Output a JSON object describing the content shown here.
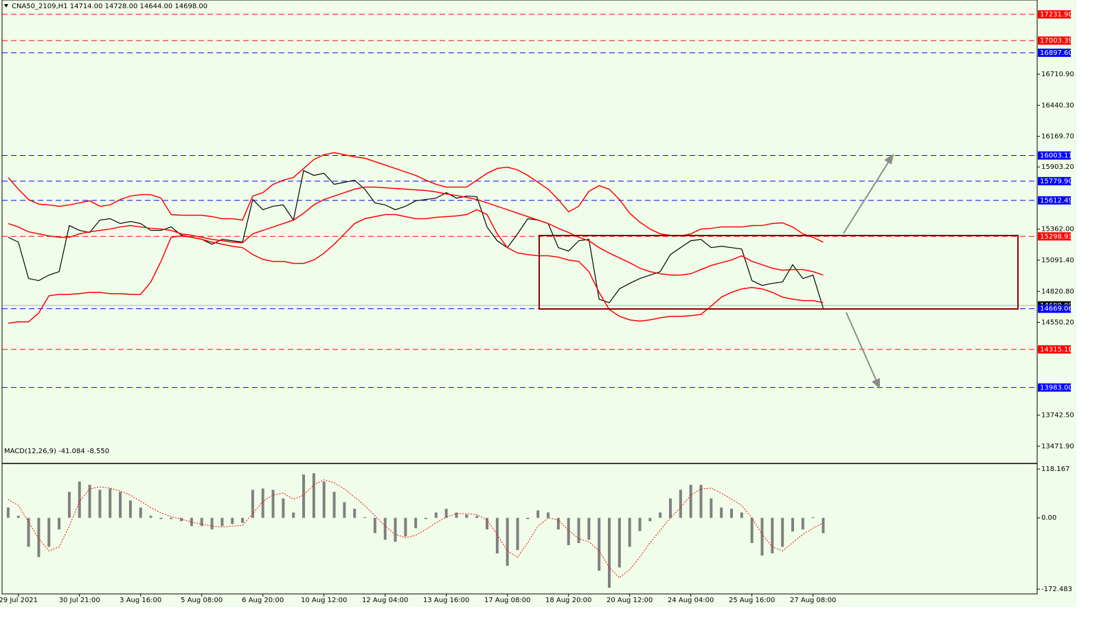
{
  "chart_data": [
    {
      "type": "line",
      "title": "CNA50_2109,H1  14714.00 14728.00 14644.00 14698.00",
      "x": [
        -1,
        0,
        1,
        2,
        3,
        4,
        5,
        6,
        7,
        8,
        9,
        10,
        11,
        12,
        13,
        14,
        15,
        16,
        17,
        18,
        19,
        20,
        21,
        22,
        23,
        24,
        25,
        26,
        27,
        28,
        29,
        30,
        31,
        32,
        33,
        34,
        35,
        36,
        37,
        38,
        39,
        40,
        41,
        42,
        43,
        44,
        45,
        46,
        47,
        48,
        49,
        50,
        51,
        52,
        53,
        54,
        55,
        56,
        57,
        58,
        59,
        60,
        61,
        62,
        63,
        64,
        65,
        66,
        67,
        68,
        69,
        70,
        71,
        72,
        73,
        74,
        75,
        76,
        77,
        78,
        79
      ],
      "xlim": [
        -1.6,
        100
      ],
      "xticks": [
        {
          "value": 0,
          "label": "29 Jul 2021"
        },
        {
          "value": 6,
          "label": "30 Jul 21:00"
        },
        {
          "value": 12,
          "label": "3 Aug 16:00"
        },
        {
          "value": 18,
          "label": "5 Aug 08:00"
        },
        {
          "value": 24,
          "label": "6 Aug 20:00"
        },
        {
          "value": 30,
          "label": "10 Aug 12:00"
        },
        {
          "value": 36,
          "label": "12 Aug 04:00"
        },
        {
          "value": 42,
          "label": "13 Aug 16:00"
        },
        {
          "value": 48,
          "label": "17 Aug 08:00"
        },
        {
          "value": 54,
          "label": "18 Aug 20:00"
        },
        {
          "value": 60,
          "label": "20 Aug 12:00"
        },
        {
          "value": 66,
          "label": "24 Aug 04:00"
        },
        {
          "value": 72,
          "label": "25 Aug 16:00"
        },
        {
          "value": 78,
          "label": "27 Aug 08:00"
        }
      ],
      "ylim": [
        13322,
        17357
      ],
      "yticks": [
        {
          "value": 16710.9,
          "label": "16710.90"
        },
        {
          "value": 16440.3,
          "label": "16440.30"
        },
        {
          "value": 16169.7,
          "label": "16169.70"
        },
        {
          "value": 15903.2,
          "label": "15903.20"
        },
        {
          "value": 15362,
          "label": "15362.00"
        },
        {
          "value": 15091.4,
          "label": "15091.40"
        },
        {
          "value": 14820.8,
          "label": "14820.80"
        },
        {
          "value": 14550.2,
          "label": "14550.20"
        },
        {
          "value": 13742.5,
          "label": "13742.50"
        },
        {
          "value": 13471.9,
          "label": "13471.90"
        }
      ],
      "grid": false,
      "series": [
        {
          "color": "#000000",
          "width": 1.2,
          "values": [
            15291,
            15249,
            14932,
            14914,
            14962,
            14992,
            15393,
            15351,
            15333,
            15441,
            15453,
            15411,
            15429,
            15411,
            15351,
            15351,
            15381,
            15309,
            15291,
            15273,
            15231,
            15273,
            15261,
            15249,
            15620,
            15531,
            15561,
            15573,
            15441,
            15872,
            15830,
            15848,
            15752,
            15770,
            15788,
            15710,
            15591,
            15573,
            15531,
            15561,
            15609,
            15620,
            15632,
            15680,
            15632,
            15650,
            15644,
            15381,
            15261,
            15201,
            15321,
            15453,
            15441,
            15411,
            15201,
            15171,
            15261,
            15273,
            14752,
            14722,
            14842,
            14890,
            14932,
            14962,
            14992,
            15141,
            15201,
            15261,
            15273,
            15201,
            15213,
            15201,
            15189,
            14914,
            14872,
            14890,
            14902,
            15052,
            14932,
            14962,
            14674
          ]
        },
        {
          "color": "#ff0000",
          "width": 1.5,
          "values": [
            15812,
            15710,
            15620,
            15579,
            15573,
            15561,
            15573,
            15591,
            15609,
            15561,
            15573,
            15620,
            15650,
            15662,
            15662,
            15632,
            15489,
            15483,
            15483,
            15483,
            15471,
            15453,
            15453,
            15441,
            15650,
            15680,
            15752,
            15788,
            15812,
            15890,
            15968,
            16010,
            16028,
            16010,
            15992,
            15980,
            15950,
            15920,
            15890,
            15860,
            15830,
            15788,
            15752,
            15728,
            15728,
            15728,
            15788,
            15848,
            15890,
            15902,
            15878,
            15830,
            15770,
            15710,
            15620,
            15513,
            15561,
            15692,
            15740,
            15710,
            15620,
            15501,
            15423,
            15363,
            15321,
            15309,
            15303,
            15321,
            15363,
            15369,
            15381,
            15381,
            15381,
            15393,
            15393,
            15411,
            15417,
            15381,
            15321,
            15291,
            15249
          ]
        },
        {
          "color": "#ff0000",
          "width": 1.5,
          "values": [
            15411,
            15381,
            15339,
            15321,
            15303,
            15291,
            15291,
            15321,
            15339,
            15351,
            15363,
            15381,
            15393,
            15381,
            15369,
            15363,
            15351,
            15321,
            15309,
            15291,
            15273,
            15261,
            15249,
            15243,
            15321,
            15351,
            15381,
            15411,
            15441,
            15501,
            15573,
            15620,
            15650,
            15680,
            15710,
            15728,
            15728,
            15722,
            15716,
            15710,
            15704,
            15698,
            15686,
            15668,
            15656,
            15638,
            15620,
            15591,
            15561,
            15531,
            15501,
            15471,
            15441,
            15411,
            15369,
            15333,
            15291,
            15261,
            15201,
            15154,
            15111,
            15070,
            15022,
            14992,
            14974,
            14962,
            14962,
            14974,
            15010,
            15046,
            15070,
            15094,
            15130,
            15082,
            15052,
            15022,
            15004,
            15010,
            15010,
            14992,
            14962
          ]
        },
        {
          "color": "#ff0000",
          "width": 1.5,
          "values": [
            14543,
            14555,
            14555,
            14632,
            14782,
            14794,
            14794,
            14800,
            14812,
            14812,
            14800,
            14800,
            14794,
            14794,
            14902,
            15082,
            15291,
            15303,
            15291,
            15273,
            15249,
            15231,
            15213,
            15201,
            15141,
            15099,
            15081,
            15081,
            15064,
            15064,
            15093,
            15153,
            15231,
            15321,
            15411,
            15453,
            15471,
            15489,
            15489,
            15471,
            15453,
            15453,
            15465,
            15471,
            15477,
            15489,
            15531,
            15489,
            15321,
            15201,
            15154,
            15141,
            15130,
            15130,
            15118,
            15093,
            15081,
            14992,
            14812,
            14662,
            14603,
            14572,
            14561,
            14572,
            14590,
            14603,
            14603,
            14608,
            14620,
            14692,
            14770,
            14812,
            14842,
            14854,
            14842,
            14812,
            14770,
            14752,
            14740,
            14740,
            14722
          ]
        }
      ],
      "levels": [
        {
          "value": 17231.9,
          "label": "17231.90",
          "color": "#ff0000"
        },
        {
          "value": 17003.39,
          "label": "17003.39",
          "color": "#ff0000"
        },
        {
          "value": 16897.6,
          "label": "16897.60",
          "color": "#0000ff"
        },
        {
          "value": 16003.11,
          "label": "16003.11",
          "color": "#0000ff"
        },
        {
          "value": 15779.9,
          "label": "15779.90",
          "color": "#0000ff"
        },
        {
          "value": 15612.49,
          "label": "15612.49",
          "color": "#0000ff"
        },
        {
          "value": 15298.93,
          "label": "15298.93",
          "color": "#ff0000"
        },
        {
          "value": 14669.06,
          "label": "14669.06",
          "color": "#0000ff"
        },
        {
          "value": 14315.18,
          "label": "14315.18",
          "color": "#ff0000"
        },
        {
          "value": 13983,
          "label": "13983.00",
          "color": "#0000ff"
        }
      ],
      "current_price": {
        "value": 14698,
        "label": "14698.00"
      }
    },
    {
      "type": "bar",
      "title": "MACD(12,26,9) -41.084 -8.550",
      "x": [
        -1,
        0,
        1,
        2,
        3,
        4,
        5,
        6,
        7,
        8,
        9,
        10,
        11,
        12,
        13,
        14,
        15,
        16,
        17,
        18,
        19,
        20,
        21,
        22,
        23,
        24,
        25,
        26,
        27,
        28,
        29,
        30,
        31,
        32,
        33,
        34,
        35,
        36,
        37,
        38,
        39,
        40,
        41,
        42,
        43,
        44,
        45,
        46,
        47,
        48,
        49,
        50,
        51,
        52,
        53,
        54,
        55,
        56,
        57,
        58,
        59,
        60,
        61,
        62,
        63,
        64,
        65,
        66,
        67,
        68,
        69,
        70,
        71,
        72,
        73,
        74,
        75,
        76,
        77,
        78,
        79
      ],
      "xlim": [
        -1.6,
        100
      ],
      "ylim": [
        -184,
        130
      ],
      "yticks": [
        {
          "value": 118.167,
          "label": "118.167"
        },
        {
          "value": 0,
          "label": "0.00"
        },
        {
          "value": -172.483,
          "label": "-172.483"
        }
      ],
      "series": [
        {
          "type": "bar",
          "color": "#808080",
          "values": [
            25,
            5,
            -70,
            -95,
            -70,
            -28,
            63,
            88,
            80,
            68,
            71,
            63,
            42,
            25,
            5,
            -3,
            -3,
            -8,
            -20,
            -20,
            -28,
            -20,
            -15,
            -12,
            68,
            71,
            68,
            47,
            13,
            105,
            108,
            88,
            63,
            38,
            22,
            2,
            -37,
            -53,
            -58,
            -45,
            -25,
            -3,
            13,
            22,
            13,
            8,
            5,
            -28,
            -86,
            -116,
            -78,
            -3,
            18,
            13,
            -28,
            -66,
            -61,
            -53,
            -128,
            -169,
            -120,
            -70,
            -32,
            -8,
            13,
            47,
            68,
            80,
            80,
            47,
            25,
            22,
            13,
            -61,
            -91,
            -86,
            -70,
            -33,
            -28,
            2,
            -37
          ]
        },
        {
          "type": "line",
          "color": "#ff0000",
          "values": [
            45,
            30,
            -10,
            -50,
            -80,
            -70,
            -20,
            40,
            70,
            75,
            72,
            65,
            55,
            40,
            25,
            12,
            3,
            -3,
            -10,
            -15,
            -20,
            -22,
            -20,
            -18,
            10,
            40,
            55,
            60,
            45,
            55,
            80,
            92,
            85,
            70,
            50,
            30,
            5,
            -20,
            -40,
            -48,
            -42,
            -28,
            -12,
            2,
            10,
            10,
            8,
            -5,
            -40,
            -80,
            -95,
            -60,
            -20,
            0,
            -5,
            -30,
            -50,
            -58,
            -80,
            -120,
            -145,
            -125,
            -95,
            -60,
            -30,
            0,
            25,
            55,
            70,
            72,
            60,
            45,
            30,
            0,
            -40,
            -70,
            -80,
            -60,
            -40,
            -25,
            -12
          ]
        }
      ]
    }
  ]
}
